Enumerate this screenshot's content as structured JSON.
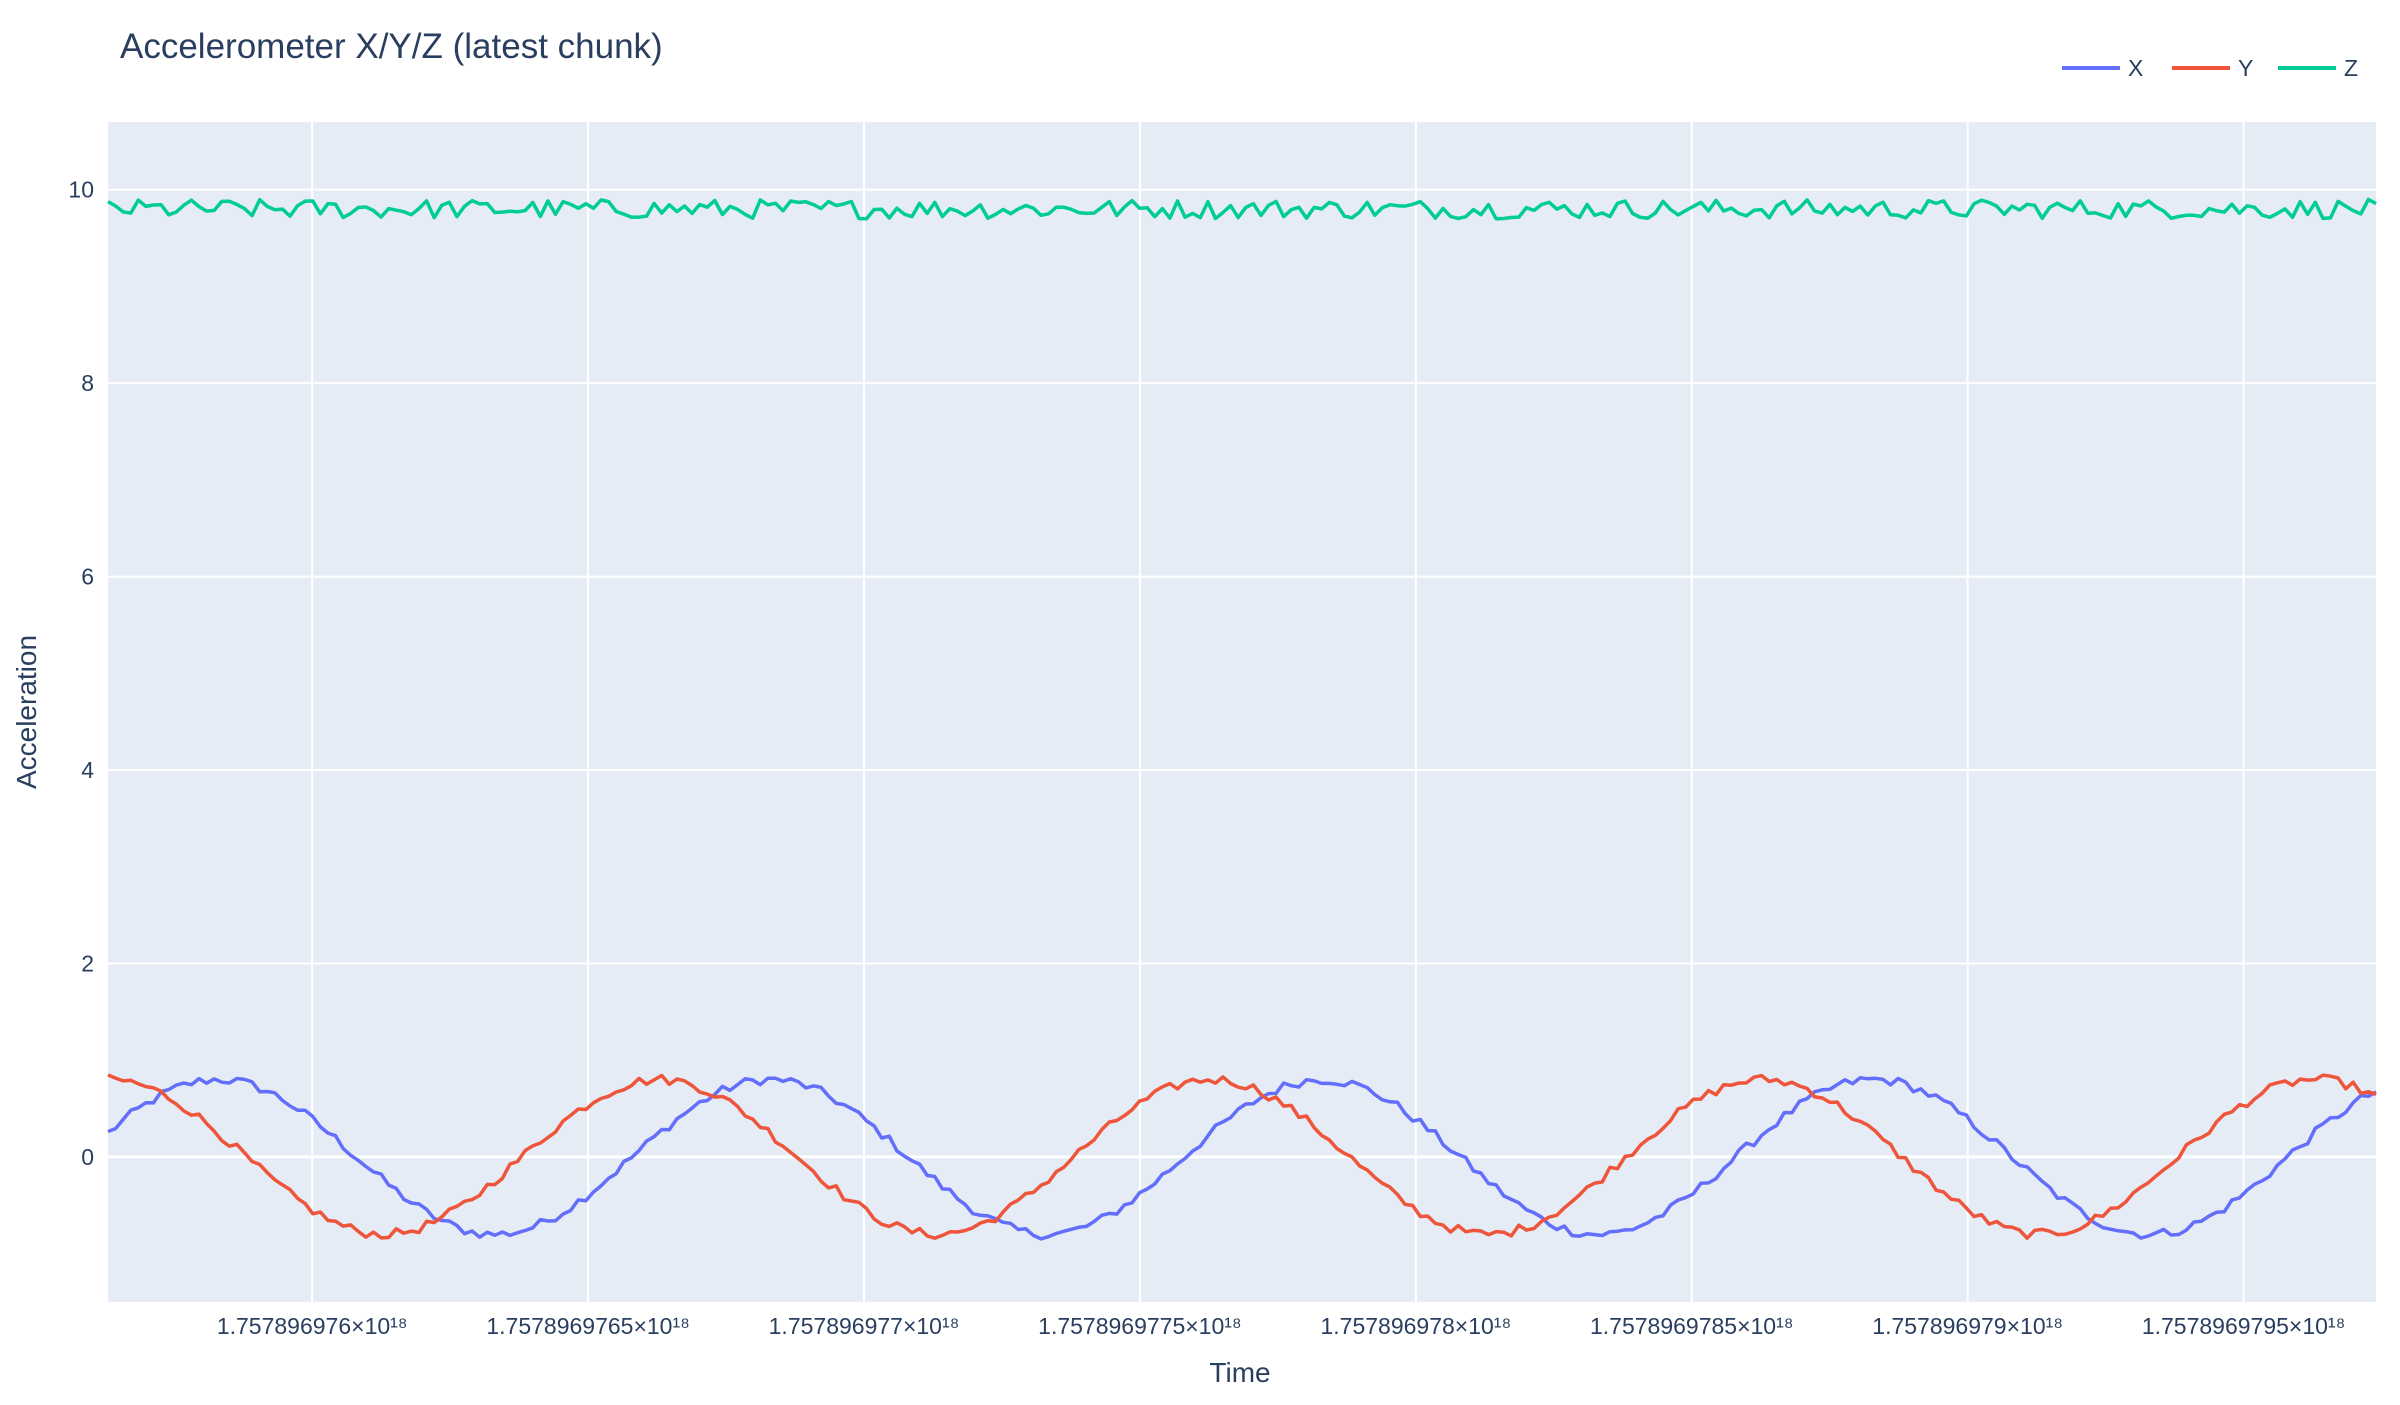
{
  "chart_data": {
    "type": "line",
    "title": "Accelerometer X/Y/Z (latest chunk)",
    "xlabel": "Time",
    "ylabel": "Acceleration",
    "ylim": [
      -1.5,
      10.7
    ],
    "y_ticks": [
      0,
      2,
      4,
      6,
      8,
      10
    ],
    "x_tick_labels": [
      "1.757896976×10¹⁸",
      "1.7578969765×10¹⁸",
      "1.757896977×10¹⁸",
      "1.7578969775×10¹⁸",
      "1.757896978×10¹⁸",
      "1.7578969785×10¹⁸",
      "1.757896979×10¹⁸",
      "1.7578969795×10¹⁸"
    ],
    "x_ticks": [
      1.757896976e+18,
      1.7578969765e+18,
      1.757896977e+18,
      1.7578969775e+18,
      1.757896978e+18,
      1.7578969785e+18,
      1.757896979e+18,
      1.7578969795e+18
    ],
    "xlim": [
      1.75789697563e+18,
      1.75789697974e+18
    ],
    "grid": true,
    "legend_position": "top-right",
    "background_color": "#e5ecf6",
    "series": [
      {
        "name": "X",
        "color": "#636efa",
        "period_s": 1.0,
        "phase_s": 0.2,
        "amplitude": 0.8,
        "offset": 0.0,
        "noise": 0.05
      },
      {
        "name": "Y",
        "color": "#ef553b",
        "period_s": 1.0,
        "phase_s": 0.0,
        "amplitude": 0.8,
        "offset": 0.0,
        "noise": 0.05
      },
      {
        "name": "Z",
        "color": "#00cc96",
        "amplitude": 0.0,
        "offset": 9.8,
        "noise": 0.1
      }
    ],
    "sample_count": 300
  }
}
